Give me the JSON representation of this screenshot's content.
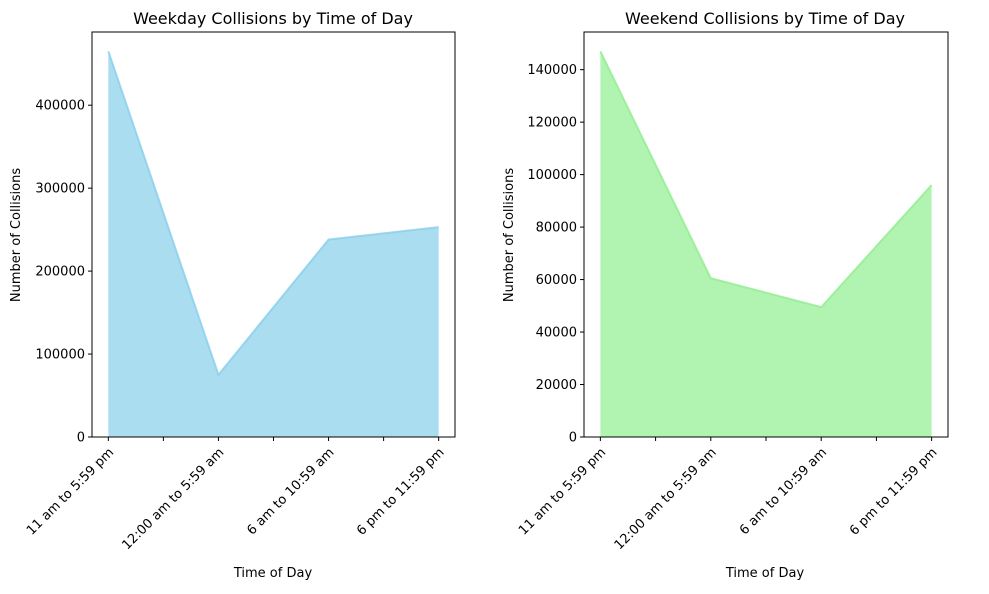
{
  "chart_data": [
    {
      "type": "area",
      "title": "Weekday Collisions by Time of Day",
      "xlabel": "Time of Day",
      "ylabel": "Number of Collisions",
      "categories": [
        "11 am to 5:59 pm",
        "12:00 am to 5:59 am",
        "6 am to 10:59 am",
        "6 pm to 11:59 pm"
      ],
      "values": [
        465000,
        75000,
        238000,
        253000
      ],
      "ylim": [
        0,
        488250
      ],
      "yticks": [
        0,
        100000,
        200000,
        300000,
        400000
      ],
      "color": "#87ceeb",
      "grid": false,
      "legend": "none"
    },
    {
      "type": "area",
      "title": "Weekend Collisions by Time of Day",
      "xlabel": "Time of Day",
      "ylabel": "Number of Collisions",
      "categories": [
        "11 am to 5:59 pm",
        "12:00 am to 5:59 am",
        "6 am to 10:59 am",
        "6 pm to 11:59 pm"
      ],
      "values": [
        147000,
        60500,
        49500,
        96000
      ],
      "ylim": [
        0,
        154350
      ],
      "yticks": [
        0,
        20000,
        40000,
        60000,
        80000,
        100000,
        120000,
        140000
      ],
      "color": "#90ee90",
      "grid": false,
      "legend": "none"
    }
  ]
}
